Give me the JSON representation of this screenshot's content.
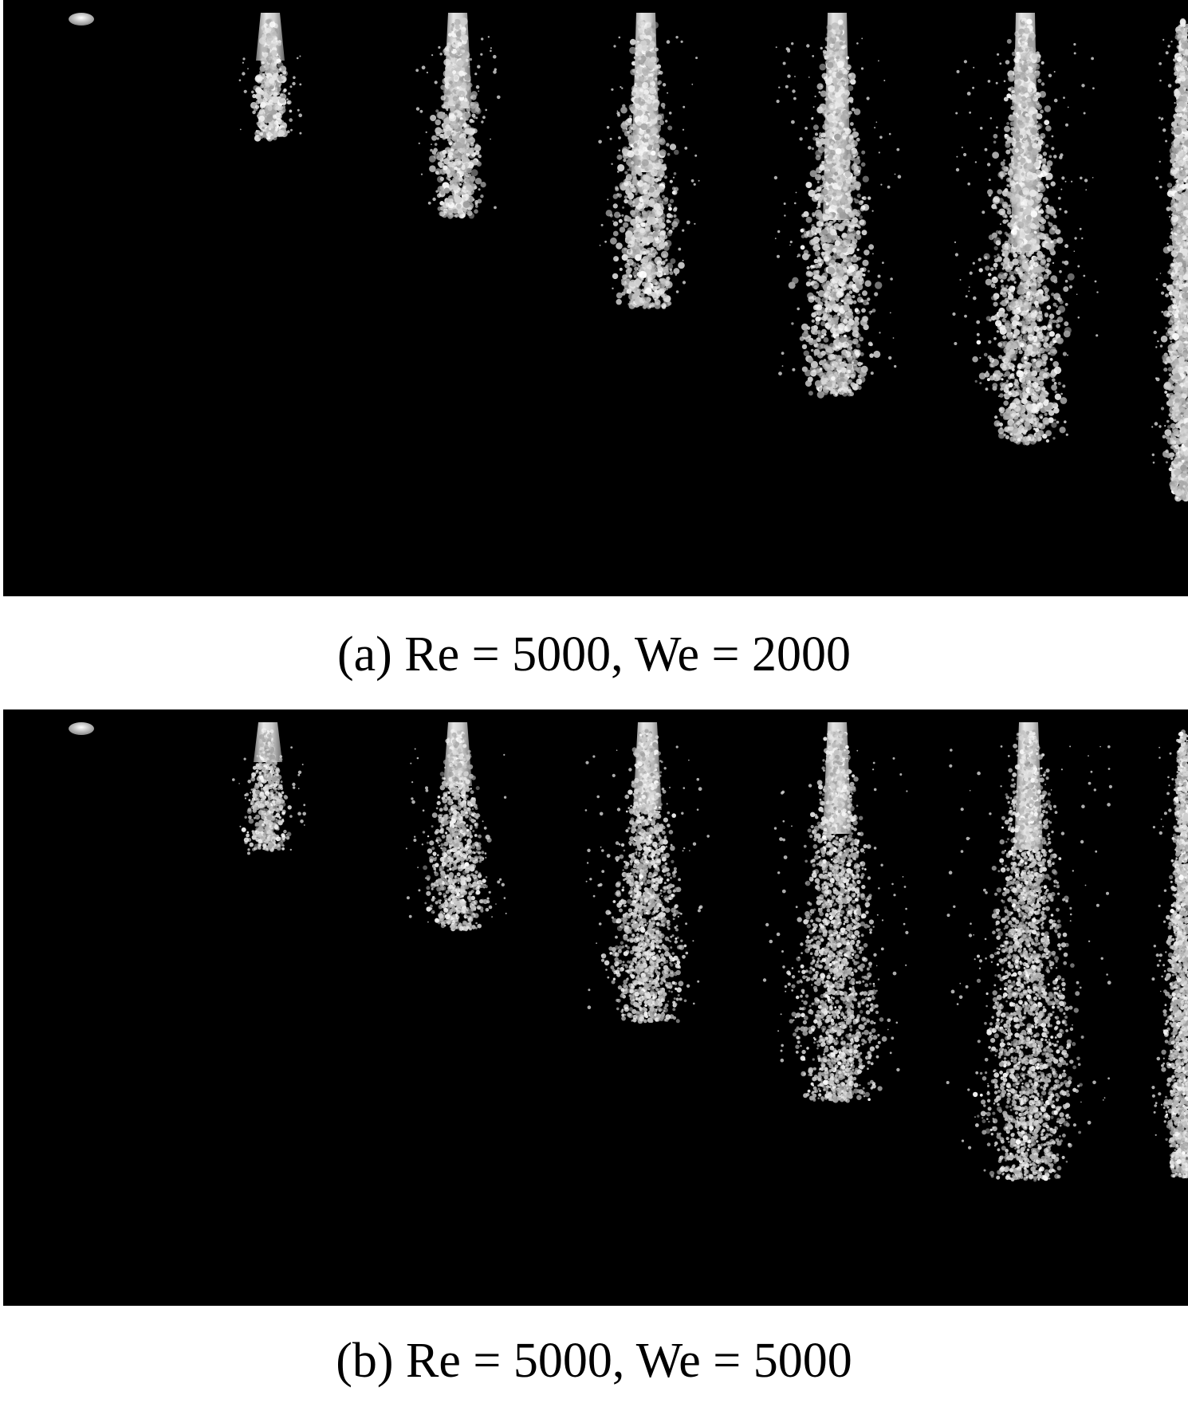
{
  "figure": {
    "panels": [
      {
        "id": "a",
        "caption": "(a) Re = 5000, We = 2000",
        "image": "jet-atomization-snapshots",
        "snapshots": 7
      },
      {
        "id": "b",
        "caption": "(b) Re = 5000, We = 5000",
        "image": "jet-atomization-snapshots",
        "snapshots": 7
      }
    ],
    "colors": {
      "background": "#000000",
      "liquid": "#c8c8c8",
      "highlight": "#f4f4f4",
      "page": "#ffffff"
    }
  }
}
